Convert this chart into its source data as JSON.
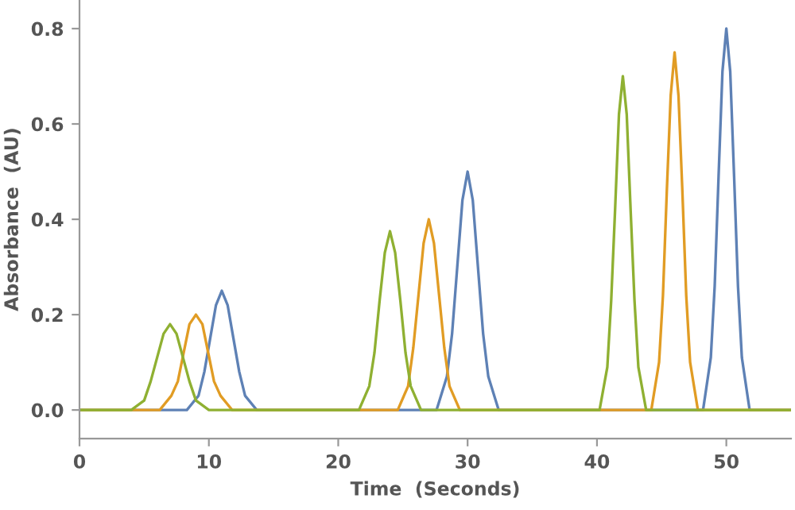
{
  "chart_data": {
    "type": "line",
    "xlabel": "Time  (Seconds)",
    "ylabel": "Absorbance  (AU)",
    "xlim": [
      0,
      55
    ],
    "ylim": [
      -0.06,
      0.86
    ],
    "xticks": [
      0,
      10,
      20,
      30,
      40,
      50
    ],
    "yticks": [
      {
        "value": 0,
        "label": "0.0"
      },
      {
        "value": 0.2,
        "label": "0.2"
      },
      {
        "value": 0.4,
        "label": "0.4"
      },
      {
        "value": 0.6,
        "label": "0.6"
      },
      {
        "value": 0.8,
        "label": "0.8"
      }
    ],
    "grid": false,
    "marker": "none",
    "line_style": "solid",
    "series": [
      {
        "color": "#5e81b5",
        "x": [
          0,
          8.3,
          9.2,
          9.65,
          10.1,
          10.55,
          11,
          11.45,
          11.9,
          12.35,
          12.8,
          13.7,
          27.6,
          28.4,
          28.8,
          29.2,
          29.6,
          30,
          30.4,
          30.8,
          31.2,
          31.6,
          32.4,
          48.2,
          48.8,
          49.1,
          49.4,
          49.7,
          50,
          50.3,
          50.6,
          50.9,
          51.2,
          51.8,
          55
        ],
        "values": [
          0,
          0,
          0.03,
          0.08,
          0.15,
          0.22,
          0.25,
          0.22,
          0.15,
          0.08,
          0.03,
          0,
          0,
          0.07,
          0.16,
          0.3,
          0.44,
          0.5,
          0.44,
          0.3,
          0.16,
          0.07,
          0,
          0,
          0.11,
          0.26,
          0.49,
          0.71,
          0.8,
          0.71,
          0.49,
          0.26,
          0.11,
          0,
          0
        ]
      },
      {
        "color": "#e19c24",
        "x": [
          0,
          6.2,
          7.1,
          7.6,
          8.05,
          8.5,
          9,
          9.5,
          9.95,
          10.4,
          10.9,
          11.8,
          24.6,
          25.4,
          25.8,
          26.2,
          26.6,
          27,
          27.4,
          27.8,
          28.2,
          28.6,
          29.4,
          44.2,
          44.8,
          45.1,
          45.4,
          45.7,
          46,
          46.3,
          46.6,
          46.9,
          47.2,
          47.8,
          55
        ],
        "values": [
          0,
          0,
          0.03,
          0.06,
          0.12,
          0.18,
          0.2,
          0.18,
          0.12,
          0.06,
          0.03,
          0,
          0,
          0.05,
          0.13,
          0.24,
          0.35,
          0.4,
          0.35,
          0.24,
          0.13,
          0.05,
          0,
          0,
          0.1,
          0.24,
          0.46,
          0.66,
          0.75,
          0.66,
          0.46,
          0.24,
          0.1,
          0,
          0
        ]
      },
      {
        "color": "#8fb032",
        "x": [
          0,
          4,
          5,
          5.5,
          6,
          6.5,
          7,
          7.5,
          8,
          8.5,
          9,
          10,
          21.6,
          22.4,
          22.8,
          23.2,
          23.6,
          24,
          24.4,
          24.8,
          25.2,
          25.6,
          26.4,
          40.2,
          40.8,
          41.1,
          41.4,
          41.7,
          42,
          42.3,
          42.6,
          42.9,
          43.2,
          43.8,
          55
        ],
        "values": [
          0,
          0,
          0.02,
          0.06,
          0.11,
          0.16,
          0.18,
          0.16,
          0.11,
          0.06,
          0.02,
          0,
          0,
          0.05,
          0.12,
          0.23,
          0.33,
          0.375,
          0.33,
          0.23,
          0.12,
          0.05,
          0,
          0,
          0.09,
          0.23,
          0.42,
          0.62,
          0.7,
          0.62,
          0.42,
          0.23,
          0.09,
          0,
          0
        ]
      }
    ]
  }
}
